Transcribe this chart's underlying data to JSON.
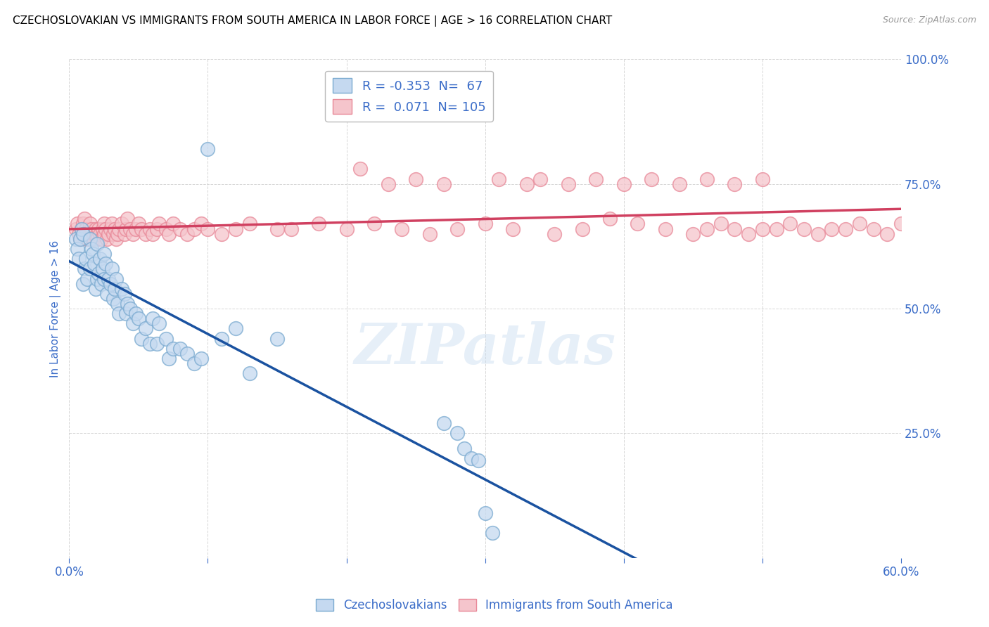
{
  "title": "CZECHOSLOVAKIAN VS IMMIGRANTS FROM SOUTH AMERICA IN LABOR FORCE | AGE > 16 CORRELATION CHART",
  "source": "Source: ZipAtlas.com",
  "ylabel": "In Labor Force | Age > 16",
  "xlim": [
    0.0,
    0.6
  ],
  "ylim": [
    0.0,
    1.0
  ],
  "xtick_positions": [
    0.0,
    0.1,
    0.2,
    0.3,
    0.4,
    0.5,
    0.6
  ],
  "xticklabels": [
    "0.0%",
    "",
    "",
    "",
    "",
    "",
    "60.0%"
  ],
  "ytick_positions": [
    0.0,
    0.25,
    0.5,
    0.75,
    1.0
  ],
  "yticklabels": [
    "",
    "25.0%",
    "50.0%",
    "75.0%",
    "100.0%"
  ],
  "blue_fill": "#C5D9F0",
  "blue_edge": "#7AAAD0",
  "pink_fill": "#F5C5CC",
  "pink_edge": "#E88898",
  "blue_line_color": "#1A52A0",
  "pink_line_color": "#D04060",
  "R_blue": -0.353,
  "N_blue": 67,
  "R_pink": 0.071,
  "N_pink": 105,
  "legend_label_blue": "Czechoslovakians",
  "legend_label_pink": "Immigrants from South America",
  "watermark": "ZIPatlas",
  "blue_x": [
    0.005,
    0.006,
    0.007,
    0.008,
    0.009,
    0.01,
    0.01,
    0.011,
    0.012,
    0.013,
    0.015,
    0.015,
    0.016,
    0.017,
    0.018,
    0.019,
    0.02,
    0.02,
    0.021,
    0.022,
    0.023,
    0.024,
    0.025,
    0.025,
    0.026,
    0.027,
    0.028,
    0.03,
    0.031,
    0.032,
    0.033,
    0.034,
    0.035,
    0.036,
    0.038,
    0.04,
    0.041,
    0.042,
    0.044,
    0.046,
    0.048,
    0.05,
    0.052,
    0.055,
    0.058,
    0.06,
    0.063,
    0.065,
    0.07,
    0.072,
    0.075,
    0.08,
    0.085,
    0.09,
    0.095,
    0.1,
    0.11,
    0.12,
    0.13,
    0.15,
    0.27,
    0.28,
    0.285,
    0.29,
    0.295,
    0.3,
    0.305
  ],
  "blue_y": [
    0.64,
    0.62,
    0.6,
    0.64,
    0.66,
    0.65,
    0.55,
    0.58,
    0.6,
    0.56,
    0.64,
    0.58,
    0.62,
    0.61,
    0.59,
    0.54,
    0.63,
    0.56,
    0.57,
    0.6,
    0.55,
    0.58,
    0.56,
    0.61,
    0.59,
    0.53,
    0.56,
    0.55,
    0.58,
    0.52,
    0.54,
    0.56,
    0.51,
    0.49,
    0.54,
    0.53,
    0.49,
    0.51,
    0.5,
    0.47,
    0.49,
    0.48,
    0.44,
    0.46,
    0.43,
    0.48,
    0.43,
    0.47,
    0.44,
    0.4,
    0.42,
    0.42,
    0.41,
    0.39,
    0.4,
    0.82,
    0.44,
    0.46,
    0.37,
    0.44,
    0.27,
    0.25,
    0.22,
    0.2,
    0.195,
    0.09,
    0.05
  ],
  "pink_x": [
    0.005,
    0.006,
    0.007,
    0.008,
    0.009,
    0.01,
    0.01,
    0.011,
    0.012,
    0.013,
    0.015,
    0.015,
    0.016,
    0.017,
    0.018,
    0.019,
    0.02,
    0.02,
    0.021,
    0.022,
    0.023,
    0.024,
    0.025,
    0.025,
    0.026,
    0.027,
    0.028,
    0.03,
    0.031,
    0.032,
    0.033,
    0.034,
    0.035,
    0.036,
    0.038,
    0.04,
    0.041,
    0.042,
    0.044,
    0.046,
    0.048,
    0.05,
    0.052,
    0.055,
    0.058,
    0.06,
    0.063,
    0.065,
    0.07,
    0.072,
    0.075,
    0.08,
    0.085,
    0.09,
    0.095,
    0.1,
    0.11,
    0.12,
    0.13,
    0.15,
    0.16,
    0.18,
    0.2,
    0.22,
    0.24,
    0.26,
    0.28,
    0.3,
    0.32,
    0.35,
    0.37,
    0.39,
    0.41,
    0.43,
    0.45,
    0.46,
    0.47,
    0.48,
    0.49,
    0.5,
    0.51,
    0.52,
    0.53,
    0.54,
    0.55,
    0.56,
    0.57,
    0.58,
    0.59,
    0.6,
    0.21,
    0.23,
    0.25,
    0.27,
    0.31,
    0.33,
    0.34,
    0.36,
    0.38,
    0.4,
    0.42,
    0.44,
    0.46,
    0.48,
    0.5
  ],
  "pink_y": [
    0.66,
    0.67,
    0.65,
    0.64,
    0.66,
    0.65,
    0.67,
    0.68,
    0.66,
    0.64,
    0.65,
    0.67,
    0.66,
    0.64,
    0.65,
    0.66,
    0.65,
    0.64,
    0.66,
    0.65,
    0.64,
    0.66,
    0.65,
    0.67,
    0.66,
    0.64,
    0.65,
    0.66,
    0.67,
    0.65,
    0.66,
    0.64,
    0.65,
    0.66,
    0.67,
    0.65,
    0.66,
    0.68,
    0.66,
    0.65,
    0.66,
    0.67,
    0.66,
    0.65,
    0.66,
    0.65,
    0.66,
    0.67,
    0.66,
    0.65,
    0.67,
    0.66,
    0.65,
    0.66,
    0.67,
    0.66,
    0.65,
    0.66,
    0.67,
    0.66,
    0.66,
    0.67,
    0.66,
    0.67,
    0.66,
    0.65,
    0.66,
    0.67,
    0.66,
    0.65,
    0.66,
    0.68,
    0.67,
    0.66,
    0.65,
    0.66,
    0.67,
    0.66,
    0.65,
    0.66,
    0.66,
    0.67,
    0.66,
    0.65,
    0.66,
    0.66,
    0.67,
    0.66,
    0.65,
    0.67,
    0.78,
    0.75,
    0.76,
    0.75,
    0.76,
    0.75,
    0.76,
    0.75,
    0.76,
    0.75,
    0.76,
    0.75,
    0.76,
    0.75,
    0.76
  ]
}
